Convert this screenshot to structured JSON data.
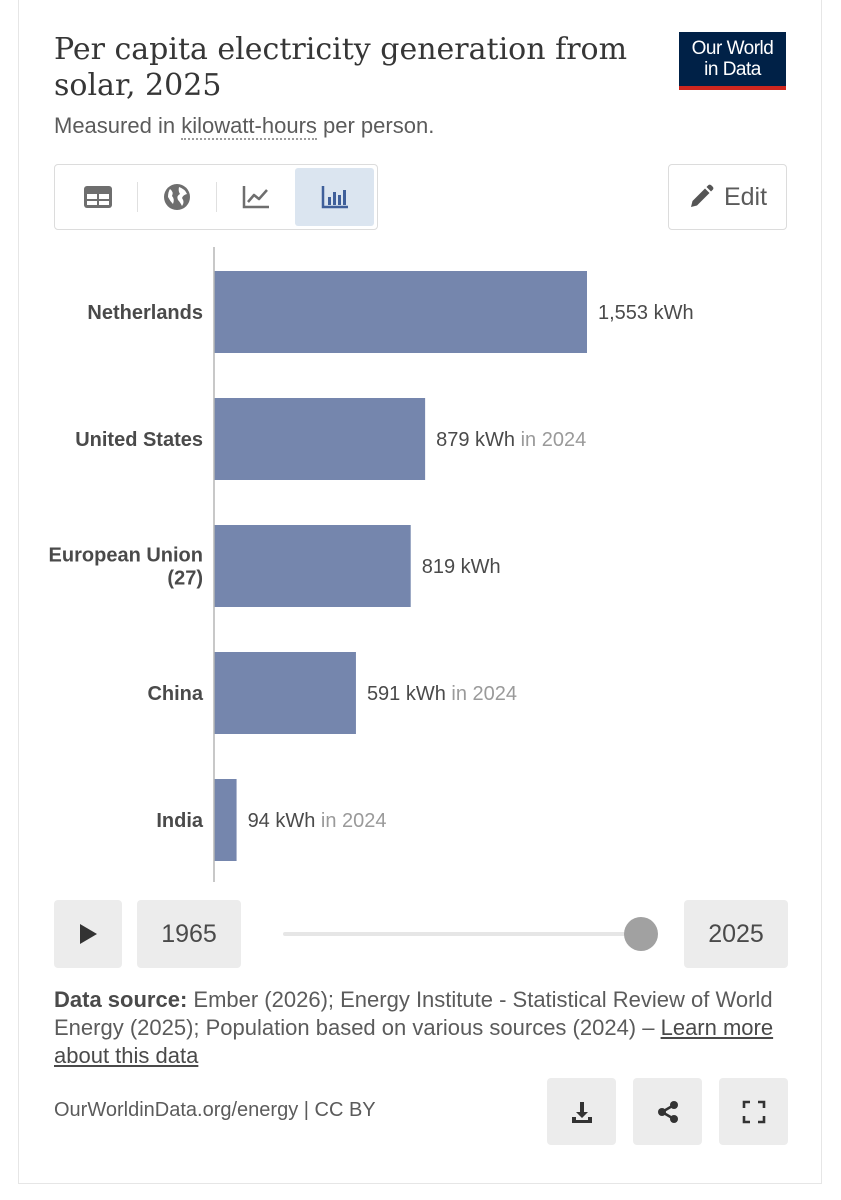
{
  "header": {
    "title": "Per capita electricity generation from solar, 2025",
    "subtitle_prefix": "Measured in ",
    "subtitle_unit": "kilowatt-hours",
    "subtitle_suffix": " per person.",
    "logo_line1": "Our World",
    "logo_line2": "in Data"
  },
  "tabs": [
    {
      "name": "table",
      "icon": "table-icon"
    },
    {
      "name": "map",
      "icon": "globe-icon"
    },
    {
      "name": "line",
      "icon": "line-chart-icon"
    },
    {
      "name": "bar",
      "icon": "bar-chart-icon",
      "active": true
    }
  ],
  "edit": {
    "label": "Edit",
    "icon": "pencil-icon"
  },
  "colors": {
    "bar": "#7586ad",
    "axis": "#b5b5b5",
    "label": "#4a4a4a",
    "muted": "#9a9a9a"
  },
  "chart_data": {
    "type": "bar",
    "orientation": "horizontal",
    "title": "Per capita electricity generation from solar, 2025",
    "unit": "kWh",
    "categories": [
      "Netherlands",
      "United States",
      "European Union (27)",
      "China",
      "India"
    ],
    "label_lines": [
      [
        "Netherlands"
      ],
      [
        "United States"
      ],
      [
        "European Union",
        "(27)"
      ],
      [
        "China"
      ],
      [
        "India"
      ]
    ],
    "values": [
      1553,
      879,
      819,
      591,
      94
    ],
    "value_labels": [
      "1,553 kWh",
      "879 kWh",
      "819 kWh",
      "591 kWh",
      "94 kWh"
    ],
    "year_notes": [
      "",
      "in 2024",
      "",
      "in 2024",
      "in 2024"
    ],
    "xlim": [
      0,
      1553
    ],
    "grid": false,
    "legend": "none"
  },
  "timeline": {
    "start_year": "1965",
    "end_year": "2025",
    "play_icon": "play-icon"
  },
  "source": {
    "label": "Data source:",
    "text": " Ember (2026); Energy Institute - Statistical Review of World Energy (2025); Population based on various sources (2024) – ",
    "link": "Learn more about this data"
  },
  "footer": {
    "url": "OurWorldinData.org/energy | CC BY",
    "actions": [
      "download-icon",
      "share-icon",
      "fullscreen-icon"
    ]
  }
}
